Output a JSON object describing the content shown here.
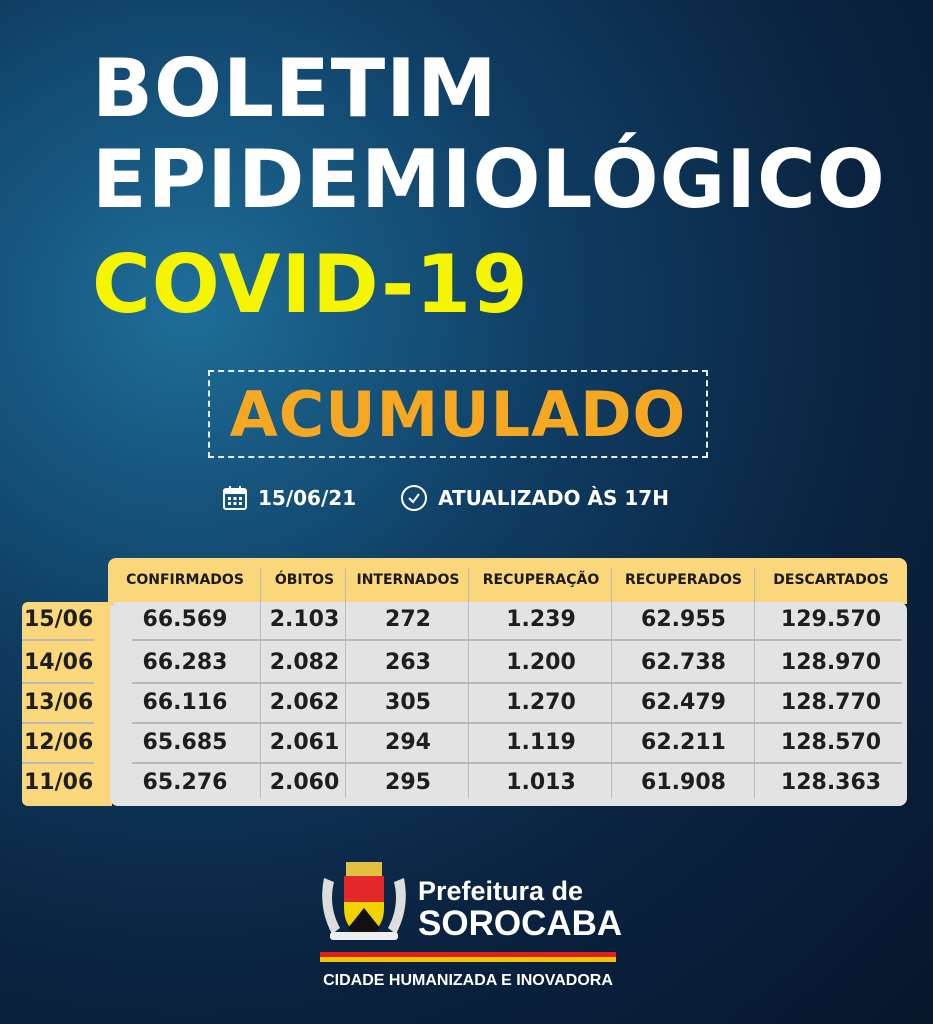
{
  "title": {
    "line1": "BOLETIM",
    "line2": "EPIDEMIOLÓGICO",
    "line3": "COVID-19"
  },
  "badge": "ACUMULADO",
  "date": "15/06/21",
  "updated": "ATUALIZADO ÀS 17H",
  "icons": {
    "date": "calendar-icon",
    "time": "clock-icon"
  },
  "colors": {
    "yellow": "#f5f500",
    "orange": "#f7a823",
    "header": "#fbd77c"
  },
  "table": {
    "columns": [
      "CONFIRMADOS",
      "ÓBITOS",
      "INTERNADOS",
      "RECUPERAÇÃO",
      "RECUPERADOS",
      "DESCARTADOS"
    ],
    "rows": [
      {
        "date": "15/06",
        "values": [
          "66.569",
          "2.103",
          "272",
          "1.239",
          "62.955",
          "129.570"
        ]
      },
      {
        "date": "14/06",
        "values": [
          "66.283",
          "2.082",
          "263",
          "1.200",
          "62.738",
          "128.970"
        ]
      },
      {
        "date": "13/06",
        "values": [
          "66.116",
          "2.062",
          "305",
          "1.270",
          "62.479",
          "128.770"
        ]
      },
      {
        "date": "12/06",
        "values": [
          "65.685",
          "2.061",
          "294",
          "1.119",
          "62.211",
          "128.570"
        ]
      },
      {
        "date": "11/06",
        "values": [
          "65.276",
          "2.060",
          "295",
          "1.013",
          "61.908",
          "128.363"
        ]
      }
    ]
  },
  "footer": {
    "line1": "Prefeitura de",
    "line2": "SOROCABA",
    "slogan": "CIDADE HUMANIZADA E INOVADORA"
  }
}
